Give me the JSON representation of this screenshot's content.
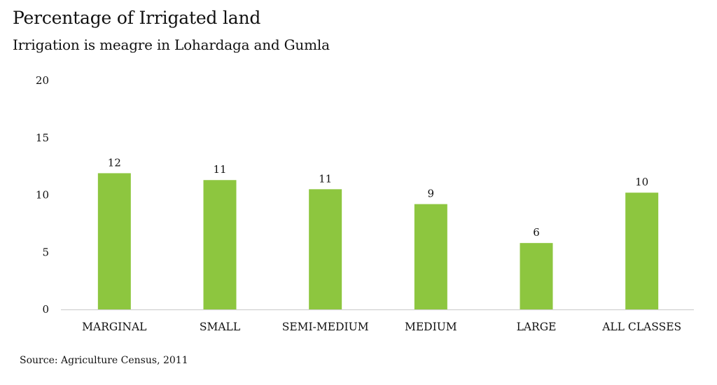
{
  "chart_data": {
    "type": "bar",
    "title": "Percentage of Irrigated land",
    "subtitle": "Irrigation is meagre in Lohardaga and Gumla",
    "xlabel": "",
    "ylabel": "",
    "categories": [
      "MARGINAL",
      "SMALL",
      "SEMI-MEDIUM",
      "MEDIUM",
      "LARGE",
      "ALL CLASSES"
    ],
    "values": [
      11.9,
      11.3,
      10.5,
      9.2,
      5.8,
      10.2
    ],
    "data_labels": [
      "12",
      "11",
      "11",
      "9",
      "6",
      "10"
    ],
    "ylim": [
      0,
      20
    ],
    "yticks": [
      0,
      5,
      10,
      15,
      20
    ],
    "grid": false,
    "legend": "none",
    "bar_color": "#8DC63F",
    "axis_color": "#D0D0D0",
    "source": "Source: Agriculture Census, 2011"
  }
}
